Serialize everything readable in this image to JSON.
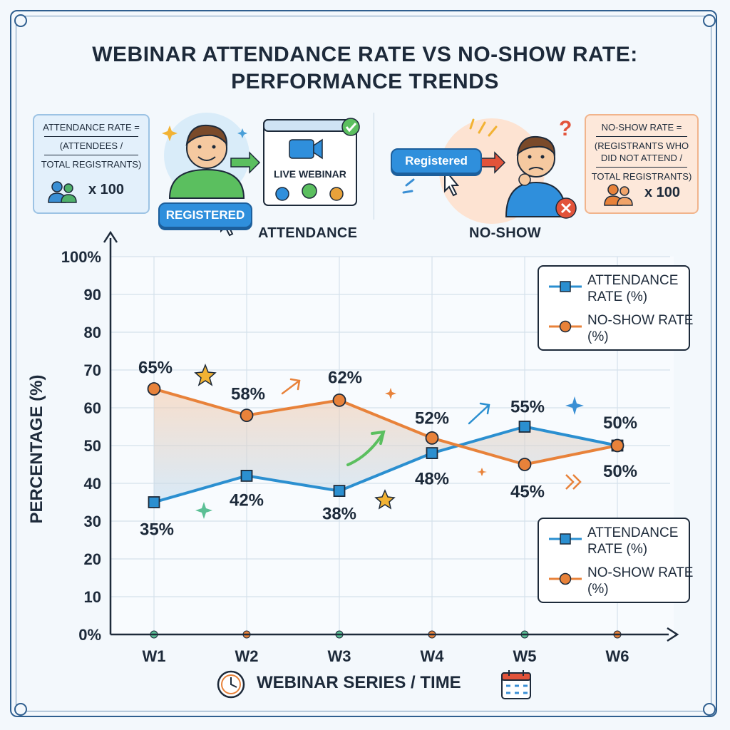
{
  "title_line1": "WEBINAR ATTENDANCE RATE VS NO-SHOW RATE:",
  "title_line2": "PERFORMANCE TRENDS",
  "attendance_formula": {
    "line1": "ATTENDANCE RATE =",
    "line2": "(ATTENDEES /",
    "line3": "TOTAL REGISTRANTS)",
    "multiplier": "x 100"
  },
  "noshow_formula": {
    "line1": "NO-SHOW RATE =",
    "line2": "(REGISTRANTS WHO",
    "line3": "DID NOT ATTEND /",
    "line4": "TOTAL REGISTRANTS)",
    "multiplier": "x 100"
  },
  "illustration": {
    "registered_button": "REGISTERED",
    "registered_button_alt": "Registered",
    "live_webinar": "LIVE WEBINAR",
    "attendance_label": "ATTENDANCE",
    "noshow_label": "NO-SHOW"
  },
  "legend": {
    "attendance": "ATTENDANCE RATE (%)",
    "noshow": "NO-SHOW RATE (%)"
  },
  "colors": {
    "attendance": "#2b8fd0",
    "noshow": "#e8823a",
    "axis": "#1d2a3a",
    "grid": "#d5e1ec"
  },
  "chart_data": {
    "type": "line",
    "x": [
      "W1",
      "W2",
      "W3",
      "W4",
      "W5",
      "W6"
    ],
    "xlabel": "WEBINAR SERIES / TIME",
    "ylabel": "PERCENTAGE (%)",
    "ylim": [
      0,
      100
    ],
    "yticks": [
      "0%",
      "10",
      "20",
      "30",
      "40",
      "50",
      "60",
      "70",
      "80",
      "90",
      "100%"
    ],
    "grid": true,
    "legend_position": "right",
    "series": [
      {
        "name": "ATTENDANCE RATE (%)",
        "values": [
          35,
          42,
          38,
          48,
          55,
          50
        ],
        "labels": [
          "35%",
          "42%",
          "38%",
          "48%",
          "55%",
          "50%"
        ],
        "marker": "square"
      },
      {
        "name": "NO-SHOW RATE (%)",
        "values": [
          65,
          58,
          62,
          52,
          45,
          50
        ],
        "labels": [
          "65%",
          "58%",
          "62%",
          "52%",
          "45%",
          "50%"
        ],
        "marker": "circle"
      }
    ]
  }
}
